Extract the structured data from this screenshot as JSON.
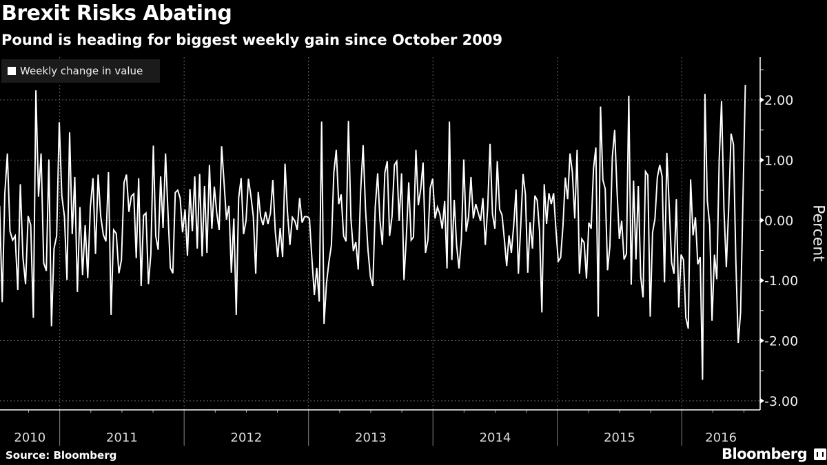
{
  "header": {
    "title": "Brexit Risks Abating",
    "subtitle": "Pound is heading for biggest weekly gain since October 2009"
  },
  "footer": {
    "source": "Source: Bloomberg",
    "logo": "Bloomberg"
  },
  "colors": {
    "background": "#000000",
    "line": "#ffffff",
    "grid": "#666666"
  },
  "chart_data": {
    "type": "line",
    "title": "Brexit Risks Abating",
    "subtitle": "Pound is heading for biggest weekly gain since October 2009",
    "ylabel": "Percent",
    "xlabel": "",
    "legend": {
      "position": "top-left",
      "entries": [
        "Weekly change in value"
      ]
    },
    "xlim": [
      2010.52,
      2016.63
    ],
    "ylim": [
      -3.15,
      2.71
    ],
    "yticks": [
      2,
      1,
      0,
      -1,
      -2,
      -3
    ],
    "ytick_labels": [
      "2.00",
      "1.00",
      "0.00",
      "-1.00",
      "-2.00",
      "-3.00"
    ],
    "xtick_labels": [
      "2010",
      "2011",
      "2012",
      "2013",
      "2014",
      "2015",
      "2016"
    ],
    "year_boundaries": [
      2011,
      2012,
      2013,
      2014,
      2015,
      2016
    ],
    "grid": true,
    "series": [
      {
        "name": "Weekly change in value",
        "segments": [
          {
            "from": 2010.517,
            "to": 2011.517,
            "values": [
              0.24,
              -1.36,
              0.44,
              1.11,
              -0.18,
              -0.33,
              -0.26,
              -1.16,
              0.6,
              -0.62,
              -1.06,
              0.07,
              -0.08,
              -1.62,
              2.16,
              0.39,
              1.11,
              -0.71,
              -0.84,
              1.01,
              -1.76,
              -0.47,
              -0.26,
              1.63,
              0.41,
              0.06,
              -0.99,
              1.46,
              -0.23,
              0.72,
              -1.19,
              0.22,
              -0.91,
              -0.08,
              -0.96,
              0.22,
              0.7,
              -0.56,
              0.76,
              0.07,
              -0.24,
              -0.35,
              0.8,
              -1.57,
              -0.16,
              -0.22,
              -0.88,
              -0.66
            ]
          },
          {
            "from": 2011.517,
            "to": 2012.517,
            "values": [
              0.63,
              0.76,
              0.14,
              0.4,
              0.44,
              -0.63,
              0.7,
              -1.09,
              0.08,
              0.12,
              -1.06,
              -0.56,
              1.24,
              -0.26,
              -0.49,
              0.73,
              -0.13,
              1.11,
              0.14,
              -0.79,
              -0.88,
              0.46,
              0.5,
              0.37,
              -0.2,
              0.18,
              -0.59,
              0.52,
              -0.18,
              0.73,
              -0.47,
              0.77,
              -0.6,
              0.57,
              -0.54,
              0.92,
              -0.14,
              0.56,
              0.12,
              -0.16,
              1.23,
              0.63,
              0.01,
              0.24,
              -0.87,
              0.03,
              -1.57,
              0.37,
              0.7,
              -0.23,
              -0.01
            ]
          },
          {
            "from": 2012.517,
            "to": 2013.517,
            "values": [
              0.69,
              0.41,
              0.06,
              -0.89,
              0.47,
              0.06,
              -0.08,
              0.14,
              -0.06,
              0.12,
              0.67,
              -0.18,
              -0.61,
              -0.13,
              -0.61,
              0.94,
              0.14,
              -0.41,
              0.05,
              -0.01,
              -0.16,
              0.37,
              -0.04,
              0.06,
              0.06,
              0.03,
              -0.62,
              -1.24,
              -0.79,
              -1.35,
              1.64,
              -1.72,
              -1.04,
              -0.69,
              -0.41,
              0.79,
              1.17,
              0.27,
              0.43,
              -0.26,
              -0.35,
              1.65,
              0.03,
              -0.51,
              -0.36,
              -0.82,
              0.48,
              1.25,
              0.18,
              -0.5,
              -0.94
            ]
          },
          {
            "from": 2013.517,
            "to": 2014.517,
            "values": [
              -1.09,
              0.22,
              0.78,
              -0.01,
              -0.41,
              0.79,
              0.98,
              -0.26,
              0.06,
              0.92,
              0.98,
              -0.01,
              0.78,
              -0.99,
              -0.28,
              0.63,
              -0.33,
              -0.28,
              1.17,
              0.25,
              0.52,
              0.96,
              -0.54,
              -0.33,
              0.54,
              0.69,
              0.03,
              0.22,
              0.1,
              -0.14,
              0.32,
              -0.8,
              1.64,
              -0.66,
              0.34,
              -0.41,
              -0.8,
              -0.31,
              1.01,
              -0.19,
              0.06,
              0.72,
              0.03,
              0.27,
              0.13,
              -0.01,
              0.37,
              -0.41,
              0.22,
              1.27,
              0.1,
              -0.14
            ]
          },
          {
            "from": 2014.517,
            "to": 2015.517,
            "values": [
              0.98,
              0.18,
              0.09,
              -0.31,
              -0.76,
              -0.25,
              -0.54,
              -0.09,
              0.51,
              -0.89,
              -0.09,
              0.77,
              0.43,
              -0.87,
              -0.03,
              -0.47,
              0.41,
              0.33,
              -0.18,
              -1.53,
              0.6,
              -0.06,
              0.45,
              0.27,
              0.45,
              -0.16,
              -0.68,
              -0.62,
              -0.09,
              0.71,
              0.35,
              1.11,
              0.8,
              0.03,
              1.17,
              -0.89,
              -0.31,
              -0.37,
              -0.97,
              -0.04,
              -0.14,
              0.86,
              1.21,
              -1.6,
              1.89,
              0.67,
              0.52,
              -0.83,
              -0.43,
              1.05,
              1.5,
              0.5,
              -0.31
            ]
          },
          {
            "from": 2015.517,
            "to": 2016.511,
            "values": [
              -0.01,
              -0.65,
              -0.56,
              2.07,
              -1.07,
              0.66,
              -0.65,
              0.57,
              -0.94,
              -1.28,
              0.81,
              0.75,
              -1.6,
              -0.2,
              0.03,
              0.71,
              0.92,
              0.73,
              -1.03,
              1.12,
              0.22,
              -0.7,
              -0.89,
              0.35,
              -1.45,
              -0.57,
              -0.66,
              -1.62,
              -1.8,
              0.68,
              -0.25,
              0.05,
              -0.73,
              -0.61,
              -2.65,
              2.1,
              0.33,
              -0.08,
              -1.67,
              -0.57,
              -0.98,
              1.01,
              1.98,
              0.18,
              -0.78,
              0.22,
              1.44,
              1.26,
              -0.66,
              -2.04,
              -1.53,
              0.37,
              2.25
            ]
          }
        ]
      }
    ]
  }
}
